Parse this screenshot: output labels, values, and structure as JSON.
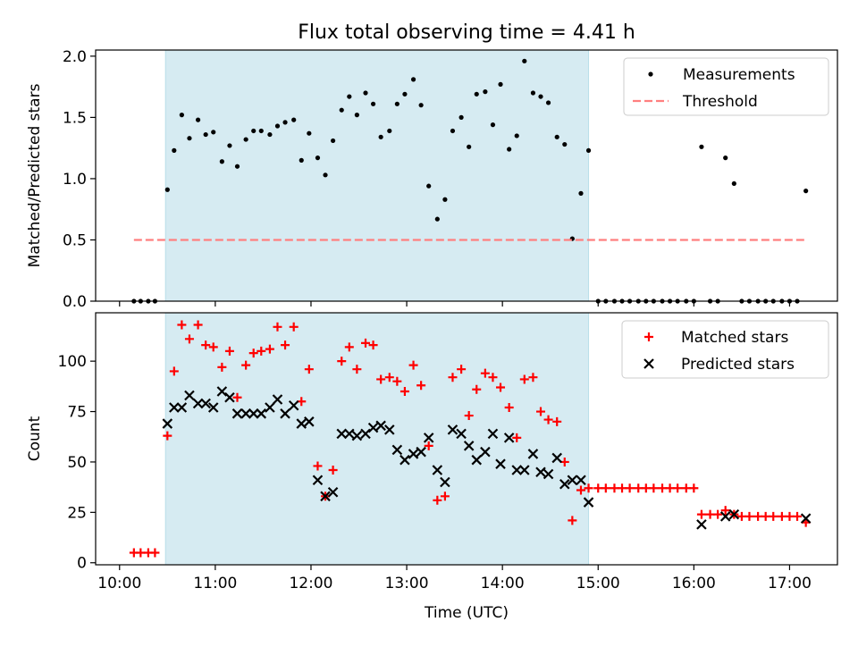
{
  "figure": {
    "title": "Flux total observing time = 4.41 h",
    "xlabel": "Time (UTC)",
    "x_ticks": [
      "10:00",
      "11:00",
      "12:00",
      "13:00",
      "14:00",
      "15:00",
      "16:00",
      "17:00"
    ],
    "highlight_span": {
      "start": 10.48,
      "end": 14.9,
      "color": "#add8e6"
    }
  },
  "chart_data": [
    {
      "type": "scatter",
      "panel": "top",
      "title": "Flux total observing time = 4.41 h",
      "xlabel": "",
      "ylabel": "Matched/Predicted stars",
      "xlim": [
        9.75,
        17.5
      ],
      "ylim": [
        0,
        2.05
      ],
      "yticks": [
        "0.0",
        "0.5",
        "1.0",
        "1.5",
        "2.0"
      ],
      "legend_position": "top-right",
      "series": [
        {
          "name": "Measurements",
          "marker": "dot",
          "color": "#000000",
          "points": [
            [
              10.15,
              0
            ],
            [
              10.22,
              0
            ],
            [
              10.3,
              0
            ],
            [
              10.37,
              0
            ],
            [
              10.5,
              0.91
            ],
            [
              10.57,
              1.23
            ],
            [
              10.65,
              1.52
            ],
            [
              10.73,
              1.33
            ],
            [
              10.82,
              1.48
            ],
            [
              10.9,
              1.36
            ],
            [
              10.98,
              1.38
            ],
            [
              11.07,
              1.14
            ],
            [
              11.15,
              1.27
            ],
            [
              11.23,
              1.1
            ],
            [
              11.32,
              1.32
            ],
            [
              11.4,
              1.39
            ],
            [
              11.48,
              1.39
            ],
            [
              11.57,
              1.36
            ],
            [
              11.65,
              1.43
            ],
            [
              11.73,
              1.46
            ],
            [
              11.82,
              1.48
            ],
            [
              11.9,
              1.15
            ],
            [
              11.98,
              1.37
            ],
            [
              12.07,
              1.17
            ],
            [
              12.15,
              1.03
            ],
            [
              12.23,
              1.31
            ],
            [
              12.32,
              1.56
            ],
            [
              12.4,
              1.67
            ],
            [
              12.48,
              1.52
            ],
            [
              12.57,
              1.7
            ],
            [
              12.65,
              1.61
            ],
            [
              12.73,
              1.34
            ],
            [
              12.82,
              1.39
            ],
            [
              12.9,
              1.61
            ],
            [
              12.98,
              1.69
            ],
            [
              13.07,
              1.81
            ],
            [
              13.15,
              1.6
            ],
            [
              13.23,
              0.94
            ],
            [
              13.32,
              0.67
            ],
            [
              13.4,
              0.83
            ],
            [
              13.48,
              1.39
            ],
            [
              13.57,
              1.5
            ],
            [
              13.65,
              1.26
            ],
            [
              13.73,
              1.69
            ],
            [
              13.82,
              1.71
            ],
            [
              13.9,
              1.44
            ],
            [
              13.98,
              1.77
            ],
            [
              14.07,
              1.24
            ],
            [
              14.15,
              1.35
            ],
            [
              14.23,
              1.96
            ],
            [
              14.32,
              1.7
            ],
            [
              14.4,
              1.67
            ],
            [
              14.48,
              1.62
            ],
            [
              14.57,
              1.34
            ],
            [
              14.65,
              1.28
            ],
            [
              14.73,
              0.51
            ],
            [
              14.82,
              0.88
            ],
            [
              14.9,
              1.23
            ],
            [
              15.0,
              0
            ],
            [
              15.08,
              0
            ],
            [
              15.17,
              0
            ],
            [
              15.25,
              0
            ],
            [
              15.33,
              0
            ],
            [
              15.42,
              0
            ],
            [
              15.5,
              0
            ],
            [
              15.58,
              0
            ],
            [
              15.67,
              0
            ],
            [
              15.75,
              0
            ],
            [
              15.83,
              0
            ],
            [
              15.92,
              0
            ],
            [
              16.0,
              0
            ],
            [
              16.08,
              1.26
            ],
            [
              16.17,
              0
            ],
            [
              16.25,
              0
            ],
            [
              16.33,
              1.17
            ],
            [
              16.42,
              0.96
            ],
            [
              16.5,
              0
            ],
            [
              16.58,
              0
            ],
            [
              16.67,
              0
            ],
            [
              16.75,
              0
            ],
            [
              16.83,
              0
            ],
            [
              16.92,
              0
            ],
            [
              17.0,
              0
            ],
            [
              17.08,
              0
            ],
            [
              17.17,
              0.9
            ]
          ]
        },
        {
          "name": "Threshold",
          "line_style": "dashed",
          "color": "#ff7f7f",
          "points": [
            [
              10.15,
              0.5
            ],
            [
              17.17,
              0.5
            ]
          ]
        }
      ]
    },
    {
      "type": "scatter",
      "panel": "bottom",
      "xlabel": "Time (UTC)",
      "ylabel": "Count",
      "xlim": [
        9.75,
        17.5
      ],
      "ylim": [
        -1,
        124
      ],
      "yticks": [
        "0",
        "25",
        "50",
        "75",
        "100"
      ],
      "legend_position": "top-right",
      "series": [
        {
          "name": "Matched stars",
          "marker": "plus",
          "color": "#ff0000",
          "points": [
            [
              10.15,
              5
            ],
            [
              10.22,
              5
            ],
            [
              10.3,
              5
            ],
            [
              10.37,
              5
            ],
            [
              10.5,
              63
            ],
            [
              10.57,
              95
            ],
            [
              10.65,
              118
            ],
            [
              10.73,
              111
            ],
            [
              10.82,
              118
            ],
            [
              10.9,
              108
            ],
            [
              10.98,
              107
            ],
            [
              11.07,
              97
            ],
            [
              11.15,
              105
            ],
            [
              11.23,
              82
            ],
            [
              11.32,
              98
            ],
            [
              11.4,
              104
            ],
            [
              11.48,
              105
            ],
            [
              11.57,
              106
            ],
            [
              11.65,
              117
            ],
            [
              11.73,
              108
            ],
            [
              11.82,
              117
            ],
            [
              11.9,
              80
            ],
            [
              11.98,
              96
            ],
            [
              12.07,
              48
            ],
            [
              12.15,
              33
            ],
            [
              12.23,
              46
            ],
            [
              12.32,
              100
            ],
            [
              12.4,
              107
            ],
            [
              12.48,
              96
            ],
            [
              12.57,
              109
            ],
            [
              12.65,
              108
            ],
            [
              12.73,
              91
            ],
            [
              12.82,
              92
            ],
            [
              12.9,
              90
            ],
            [
              12.98,
              85
            ],
            [
              13.07,
              98
            ],
            [
              13.15,
              88
            ],
            [
              13.23,
              58
            ],
            [
              13.32,
              31
            ],
            [
              13.4,
              33
            ],
            [
              13.48,
              92
            ],
            [
              13.57,
              96
            ],
            [
              13.65,
              73
            ],
            [
              13.73,
              86
            ],
            [
              13.82,
              94
            ],
            [
              13.9,
              92
            ],
            [
              13.98,
              87
            ],
            [
              14.07,
              77
            ],
            [
              14.15,
              62
            ],
            [
              14.23,
              91
            ],
            [
              14.32,
              92
            ],
            [
              14.4,
              75
            ],
            [
              14.48,
              71
            ],
            [
              14.57,
              70
            ],
            [
              14.65,
              50
            ],
            [
              14.73,
              21
            ],
            [
              14.82,
              36
            ],
            [
              14.9,
              37
            ],
            [
              15.0,
              37
            ],
            [
              15.08,
              37
            ],
            [
              15.17,
              37
            ],
            [
              15.25,
              37
            ],
            [
              15.33,
              37
            ],
            [
              15.42,
              37
            ],
            [
              15.5,
              37
            ],
            [
              15.58,
              37
            ],
            [
              15.67,
              37
            ],
            [
              15.75,
              37
            ],
            [
              15.83,
              37
            ],
            [
              15.92,
              37
            ],
            [
              16.0,
              37
            ],
            [
              16.08,
              24
            ],
            [
              16.17,
              24
            ],
            [
              16.25,
              24
            ],
            [
              16.33,
              26
            ],
            [
              16.42,
              24
            ],
            [
              16.5,
              23
            ],
            [
              16.58,
              23
            ],
            [
              16.67,
              23
            ],
            [
              16.75,
              23
            ],
            [
              16.83,
              23
            ],
            [
              16.92,
              23
            ],
            [
              17.0,
              23
            ],
            [
              17.08,
              23
            ],
            [
              17.17,
              20
            ]
          ]
        },
        {
          "name": "Predicted stars",
          "marker": "x",
          "color": "#000000",
          "points": [
            [
              10.5,
              69
            ],
            [
              10.57,
              77
            ],
            [
              10.65,
              77
            ],
            [
              10.73,
              83
            ],
            [
              10.82,
              79
            ],
            [
              10.9,
              79
            ],
            [
              10.98,
              77
            ],
            [
              11.07,
              85
            ],
            [
              11.15,
              82
            ],
            [
              11.23,
              74
            ],
            [
              11.32,
              74
            ],
            [
              11.4,
              74
            ],
            [
              11.48,
              74
            ],
            [
              11.57,
              77
            ],
            [
              11.65,
              81
            ],
            [
              11.73,
              74
            ],
            [
              11.82,
              78
            ],
            [
              11.9,
              69
            ],
            [
              11.98,
              70
            ],
            [
              12.07,
              41
            ],
            [
              12.15,
              33
            ],
            [
              12.23,
              35
            ],
            [
              12.32,
              64
            ],
            [
              12.4,
              64
            ],
            [
              12.48,
              63
            ],
            [
              12.57,
              64
            ],
            [
              12.65,
              67
            ],
            [
              12.73,
              68
            ],
            [
              12.82,
              66
            ],
            [
              12.9,
              56
            ],
            [
              12.98,
              51
            ],
            [
              13.07,
              54
            ],
            [
              13.15,
              55
            ],
            [
              13.23,
              62
            ],
            [
              13.32,
              46
            ],
            [
              13.4,
              40
            ],
            [
              13.48,
              66
            ],
            [
              13.57,
              64
            ],
            [
              13.65,
              58
            ],
            [
              13.73,
              51
            ],
            [
              13.82,
              55
            ],
            [
              13.9,
              64
            ],
            [
              13.98,
              49
            ],
            [
              14.07,
              62
            ],
            [
              14.15,
              46
            ],
            [
              14.23,
              46
            ],
            [
              14.32,
              54
            ],
            [
              14.4,
              45
            ],
            [
              14.48,
              44
            ],
            [
              14.57,
              52
            ],
            [
              14.65,
              39
            ],
            [
              14.73,
              41
            ],
            [
              14.82,
              41
            ],
            [
              14.9,
              30
            ],
            [
              16.08,
              19
            ],
            [
              16.33,
              23
            ],
            [
              16.42,
              24
            ],
            [
              17.17,
              22
            ]
          ]
        }
      ]
    }
  ]
}
